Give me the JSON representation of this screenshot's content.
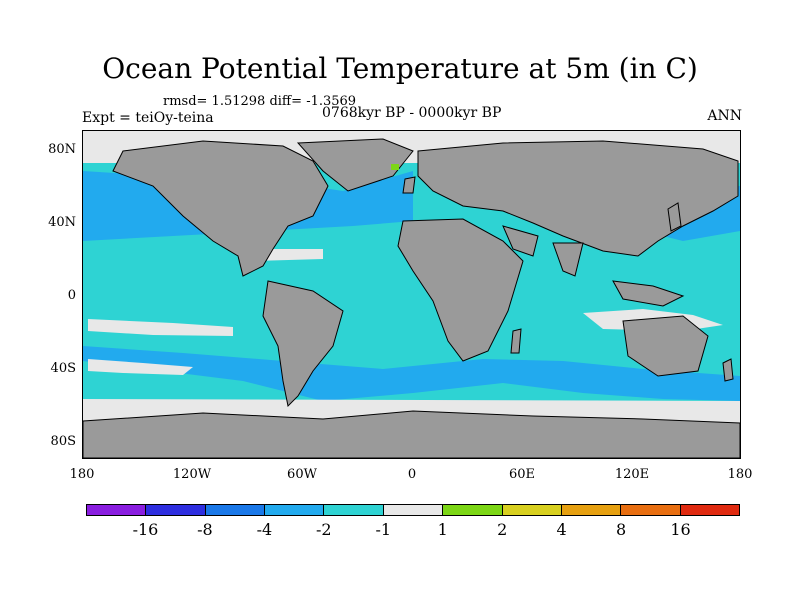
{
  "title": "Ocean Potential Temperature at 5m (in C)",
  "stats_line": "rmsd= 1.51298 diff= -1.3569",
  "experiment": "Expt = teiOy-teina",
  "period": "0768kyr BP - 0000kyr BP",
  "season": "ANN",
  "lat_ticks": [
    "80N",
    "40N",
    "0",
    "40S",
    "80S"
  ],
  "lon_ticks": [
    "180",
    "120W",
    "60W",
    "0",
    "60E",
    "120E",
    "180"
  ],
  "colorbar": {
    "colors": [
      "#8a1ee0",
      "#2e2ee0",
      "#1a78e8",
      "#22aaee",
      "#2ed3d3",
      "#e8e8e8",
      "#7cd616",
      "#d8d020",
      "#e6a010",
      "#e86e10",
      "#e02a10"
    ],
    "labels": [
      "-16",
      "-8",
      "-4",
      "-2",
      "-1",
      "1",
      "2",
      "4",
      "8",
      "16"
    ]
  },
  "legend_colors": {
    "land": "#9a9a9a",
    "ocean_minus1_to_minus2": "#2ed3d3",
    "ocean_minus2_to_minus4": "#22aaee",
    "near_zero": "#e8e8e8"
  }
}
